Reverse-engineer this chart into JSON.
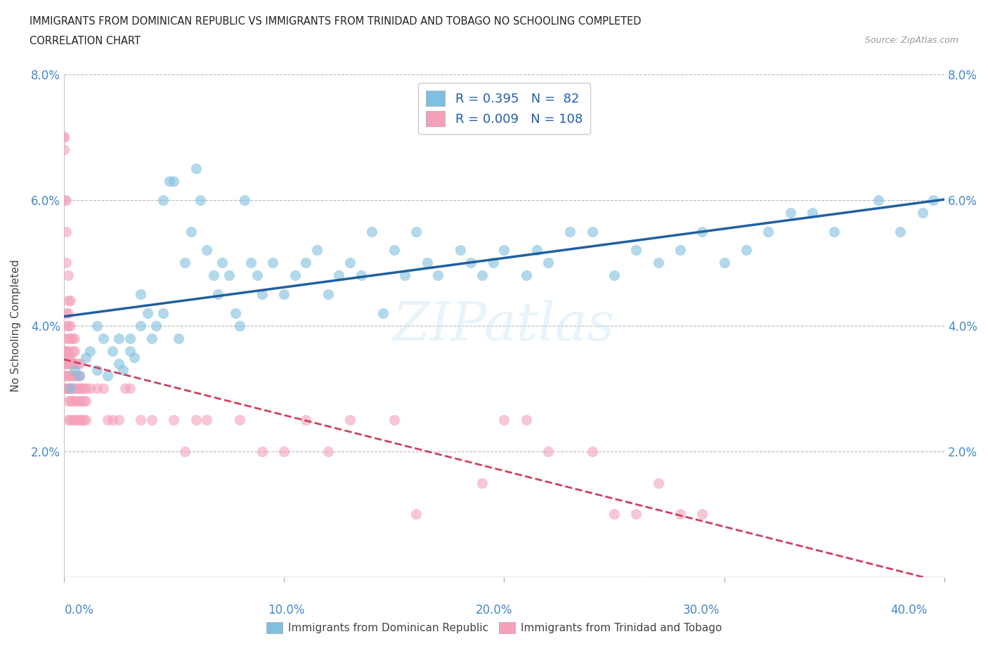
{
  "title_line1": "IMMIGRANTS FROM DOMINICAN REPUBLIC VS IMMIGRANTS FROM TRINIDAD AND TOBAGO NO SCHOOLING COMPLETED",
  "title_line2": "CORRELATION CHART",
  "source_text": "Source: ZipAtlas.com",
  "ylabel": "No Schooling Completed",
  "xlim": [
    0.0,
    0.4
  ],
  "ylim": [
    0.0,
    0.08
  ],
  "xticks": [
    0.0,
    0.1,
    0.2,
    0.3,
    0.4
  ],
  "yticks": [
    0.0,
    0.02,
    0.04,
    0.06,
    0.08
  ],
  "xtick_labels": [
    "0.0%",
    "10.0%",
    "20.0%",
    "30.0%",
    "40.0%"
  ],
  "ytick_labels": [
    "",
    "2.0%",
    "4.0%",
    "6.0%",
    "8.0%"
  ],
  "color_blue": "#7fbfdf",
  "color_pink": "#f4a0b8",
  "trendline_blue": "#2060a0",
  "trendline_pink": "#d04060",
  "R_blue": 0.395,
  "N_blue": 82,
  "R_pink": 0.009,
  "N_pink": 108,
  "legend_label_blue": "Immigrants from Dominican Republic",
  "legend_label_pink": "Immigrants from Trinidad and Tobago",
  "blue_x": [
    0.003,
    0.005,
    0.007,
    0.01,
    0.012,
    0.015,
    0.015,
    0.018,
    0.02,
    0.022,
    0.025,
    0.025,
    0.027,
    0.03,
    0.03,
    0.032,
    0.035,
    0.035,
    0.038,
    0.04,
    0.042,
    0.045,
    0.045,
    0.048,
    0.05,
    0.052,
    0.055,
    0.058,
    0.06,
    0.062,
    0.065,
    0.068,
    0.07,
    0.072,
    0.075,
    0.078,
    0.08,
    0.082,
    0.085,
    0.088,
    0.09,
    0.095,
    0.1,
    0.105,
    0.11,
    0.115,
    0.12,
    0.125,
    0.13,
    0.135,
    0.14,
    0.145,
    0.15,
    0.155,
    0.16,
    0.165,
    0.17,
    0.18,
    0.185,
    0.19,
    0.195,
    0.2,
    0.21,
    0.215,
    0.22,
    0.23,
    0.24,
    0.25,
    0.26,
    0.27,
    0.28,
    0.29,
    0.3,
    0.31,
    0.32,
    0.33,
    0.34,
    0.35,
    0.37,
    0.38,
    0.39,
    0.395
  ],
  "blue_y": [
    0.03,
    0.033,
    0.032,
    0.035,
    0.036,
    0.033,
    0.04,
    0.038,
    0.032,
    0.036,
    0.034,
    0.038,
    0.033,
    0.036,
    0.038,
    0.035,
    0.04,
    0.045,
    0.042,
    0.038,
    0.04,
    0.042,
    0.06,
    0.063,
    0.063,
    0.038,
    0.05,
    0.055,
    0.065,
    0.06,
    0.052,
    0.048,
    0.045,
    0.05,
    0.048,
    0.042,
    0.04,
    0.06,
    0.05,
    0.048,
    0.045,
    0.05,
    0.045,
    0.048,
    0.05,
    0.052,
    0.045,
    0.048,
    0.05,
    0.048,
    0.055,
    0.042,
    0.052,
    0.048,
    0.055,
    0.05,
    0.048,
    0.052,
    0.05,
    0.048,
    0.05,
    0.052,
    0.048,
    0.052,
    0.05,
    0.055,
    0.055,
    0.048,
    0.052,
    0.05,
    0.052,
    0.055,
    0.05,
    0.052,
    0.055,
    0.058,
    0.058,
    0.055,
    0.06,
    0.055,
    0.058,
    0.06
  ],
  "pink_x": [
    0.0,
    0.0,
    0.0,
    0.0,
    0.0,
    0.0,
    0.0,
    0.0,
    0.0,
    0.0,
    0.001,
    0.001,
    0.001,
    0.001,
    0.001,
    0.001,
    0.001,
    0.001,
    0.001,
    0.001,
    0.001,
    0.002,
    0.002,
    0.002,
    0.002,
    0.002,
    0.002,
    0.002,
    0.002,
    0.002,
    0.002,
    0.002,
    0.002,
    0.002,
    0.003,
    0.003,
    0.003,
    0.003,
    0.003,
    0.003,
    0.003,
    0.003,
    0.003,
    0.004,
    0.004,
    0.004,
    0.004,
    0.004,
    0.004,
    0.004,
    0.005,
    0.005,
    0.005,
    0.005,
    0.005,
    0.005,
    0.005,
    0.006,
    0.006,
    0.006,
    0.006,
    0.006,
    0.007,
    0.007,
    0.007,
    0.007,
    0.007,
    0.008,
    0.008,
    0.008,
    0.009,
    0.009,
    0.009,
    0.01,
    0.01,
    0.01,
    0.012,
    0.015,
    0.018,
    0.02,
    0.022,
    0.025,
    0.028,
    0.03,
    0.035,
    0.04,
    0.05,
    0.055,
    0.06,
    0.065,
    0.08,
    0.09,
    0.1,
    0.11,
    0.12,
    0.13,
    0.15,
    0.16,
    0.19,
    0.2,
    0.21,
    0.22,
    0.24,
    0.25,
    0.26,
    0.27,
    0.28,
    0.29
  ],
  "pink_y": [
    0.03,
    0.032,
    0.034,
    0.036,
    0.036,
    0.038,
    0.07,
    0.07,
    0.068,
    0.06,
    0.03,
    0.03,
    0.032,
    0.034,
    0.035,
    0.036,
    0.04,
    0.042,
    0.05,
    0.055,
    0.06,
    0.025,
    0.028,
    0.03,
    0.03,
    0.032,
    0.034,
    0.035,
    0.036,
    0.038,
    0.04,
    0.042,
    0.044,
    0.048,
    0.025,
    0.028,
    0.03,
    0.032,
    0.034,
    0.035,
    0.038,
    0.04,
    0.044,
    0.025,
    0.028,
    0.03,
    0.032,
    0.034,
    0.036,
    0.038,
    0.025,
    0.028,
    0.03,
    0.032,
    0.034,
    0.036,
    0.038,
    0.025,
    0.028,
    0.03,
    0.032,
    0.034,
    0.025,
    0.028,
    0.03,
    0.032,
    0.034,
    0.025,
    0.028,
    0.03,
    0.025,
    0.028,
    0.03,
    0.025,
    0.028,
    0.03,
    0.03,
    0.03,
    0.03,
    0.025,
    0.025,
    0.025,
    0.03,
    0.03,
    0.025,
    0.025,
    0.025,
    0.02,
    0.025,
    0.025,
    0.025,
    0.02,
    0.02,
    0.025,
    0.02,
    0.025,
    0.025,
    0.01,
    0.015,
    0.025,
    0.025,
    0.02,
    0.02,
    0.01,
    0.01,
    0.015,
    0.01,
    0.01
  ]
}
